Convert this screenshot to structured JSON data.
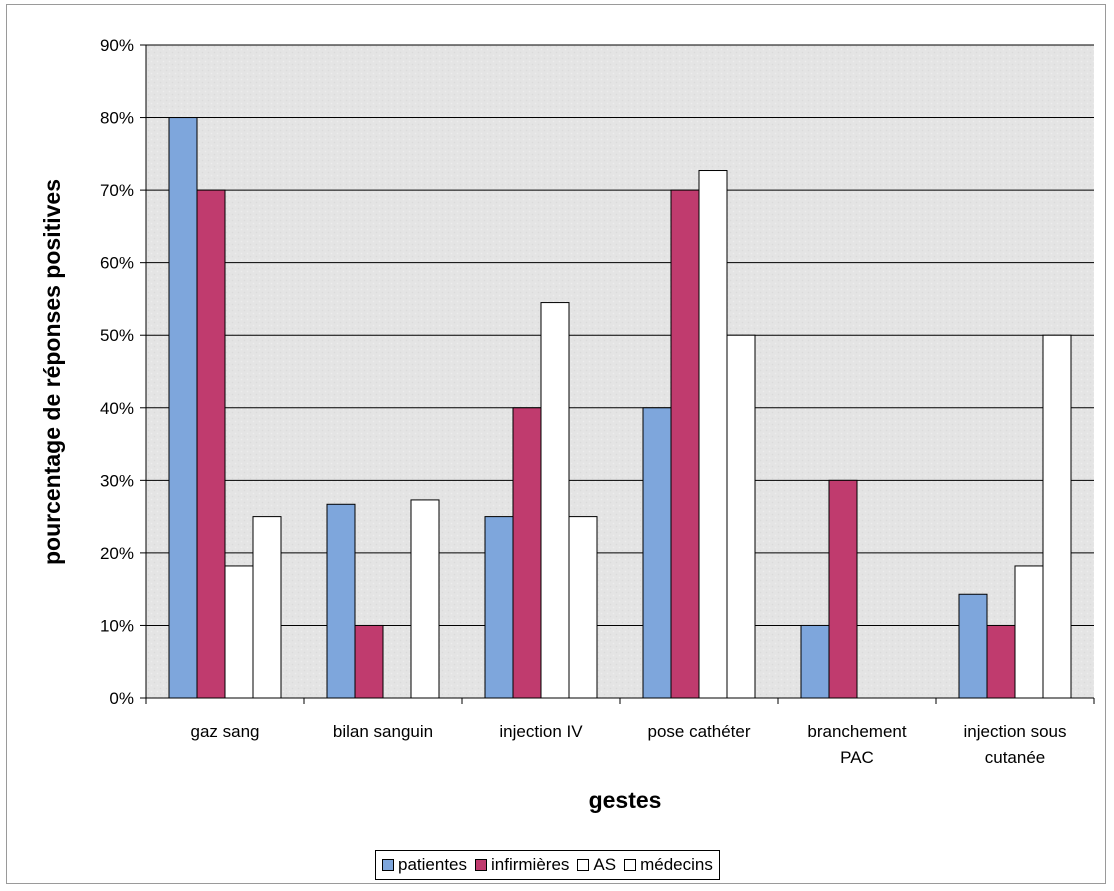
{
  "chart_data": {
    "type": "bar",
    "title": "",
    "xlabel": "gestes",
    "ylabel": "pourcentage de réponses positives",
    "ylim": [
      0,
      90
    ],
    "ytick_format": "percent",
    "yticks": [
      "0%",
      "10%",
      "20%",
      "30%",
      "40%",
      "50%",
      "60%",
      "70%",
      "80%",
      "90%"
    ],
    "grid": true,
    "legend_position": "bottom",
    "categories": [
      [
        "gaz sang"
      ],
      [
        "bilan sanguin"
      ],
      [
        "injection IV"
      ],
      [
        "pose cathéter"
      ],
      [
        "branchement",
        "PAC"
      ],
      [
        "injection sous",
        "cutanée"
      ]
    ],
    "series": [
      {
        "name": "patientes",
        "color": "#7ea6dc",
        "values": [
          80,
          26.7,
          25,
          40,
          10,
          14.3
        ]
      },
      {
        "name": "infirmières",
        "color": "#c03b6e",
        "values": [
          70,
          10,
          40,
          70,
          30,
          10
        ]
      },
      {
        "name": "AS",
        "color": "#ffffff",
        "values": [
          18.2,
          0,
          54.5,
          72.7,
          0,
          18.2
        ]
      },
      {
        "name": "médecins",
        "color": "#ffffff",
        "values": [
          25,
          27.3,
          25,
          50,
          0,
          50
        ]
      }
    ],
    "plot_background": "#e6e6e6"
  }
}
